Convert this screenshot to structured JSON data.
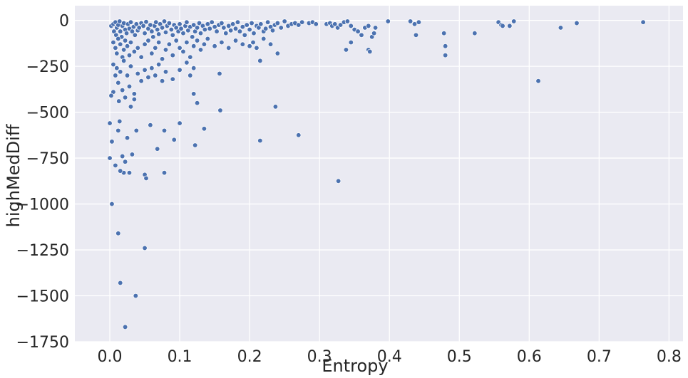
{
  "chart_data": {
    "type": "scatter",
    "title": "",
    "xlabel": "Entropy",
    "ylabel": "highMedDiff",
    "xlim": [
      -0.05,
      0.82
    ],
    "ylim": [
      -1750,
      80
    ],
    "x_ticks": [
      0.0,
      0.1,
      0.2,
      0.3,
      0.4,
      0.5,
      0.6,
      0.7,
      0.8
    ],
    "x_tick_labels": [
      "0.0",
      "0.1",
      "0.2",
      "0.3",
      "0.4",
      "0.5",
      "0.6",
      "0.7",
      "0.8"
    ],
    "y_ticks": [
      0,
      -250,
      -500,
      -750,
      -1000,
      -1250,
      -1500,
      -1750
    ],
    "y_tick_labels": [
      "0",
      "−250",
      "−500",
      "−750",
      "−1000",
      "−1250",
      "−1500",
      "−1750"
    ],
    "grid": true,
    "style": {
      "background_color": "#eaeaf2",
      "grid_color": "#ffffff",
      "point_color": "#4c72b0"
    },
    "points": [
      [
        0.002,
        -30
      ],
      [
        0.005,
        -20
      ],
      [
        0.006,
        -60
      ],
      [
        0.008,
        -10
      ],
      [
        0.009,
        -80
      ],
      [
        0.01,
        -40
      ],
      [
        0.012,
        -25
      ],
      [
        0.014,
        -5
      ],
      [
        0.015,
        -60
      ],
      [
        0.017,
        -90
      ],
      [
        0.018,
        -30
      ],
      [
        0.02,
        -15
      ],
      [
        0.022,
        -50
      ],
      [
        0.024,
        -70
      ],
      [
        0.026,
        -20
      ],
      [
        0.028,
        -45
      ],
      [
        0.03,
        -10
      ],
      [
        0.032,
        -60
      ],
      [
        0.034,
        -35
      ],
      [
        0.036,
        -80
      ],
      [
        0.038,
        -20
      ],
      [
        0.04,
        -55
      ],
      [
        0.042,
        -40
      ],
      [
        0.045,
        -15
      ],
      [
        0.048,
        -30
      ],
      [
        0.05,
        -70
      ],
      [
        0.052,
        -8
      ],
      [
        0.055,
        -45
      ],
      [
        0.058,
        -25
      ],
      [
        0.06,
        -60
      ],
      [
        0.062,
        -90
      ],
      [
        0.064,
        -30
      ],
      [
        0.066,
        -10
      ],
      [
        0.068,
        -50
      ],
      [
        0.07,
        -75
      ],
      [
        0.072,
        -20
      ],
      [
        0.075,
        -40
      ],
      [
        0.078,
        -5
      ],
      [
        0.08,
        -65
      ],
      [
        0.082,
        -30
      ],
      [
        0.085,
        -15
      ],
      [
        0.088,
        -50
      ],
      [
        0.09,
        -80
      ],
      [
        0.092,
        -25
      ],
      [
        0.095,
        -40
      ],
      [
        0.098,
        -60
      ],
      [
        0.1,
        -20
      ],
      [
        0.102,
        -45
      ],
      [
        0.105,
        -70
      ],
      [
        0.108,
        -30
      ],
      [
        0.11,
        -10
      ],
      [
        0.112,
        -55
      ],
      [
        0.115,
        -35
      ],
      [
        0.118,
        -90
      ],
      [
        0.12,
        -25
      ],
      [
        0.122,
        -60
      ],
      [
        0.125,
        -40
      ],
      [
        0.128,
        -15
      ],
      [
        0.13,
        -70
      ],
      [
        0.133,
        -30
      ],
      [
        0.136,
        -50
      ],
      [
        0.14,
        -20
      ],
      [
        0.143,
        -45
      ],
      [
        0.146,
        -10
      ],
      [
        0.15,
        -35
      ],
      [
        0.153,
        -60
      ],
      [
        0.156,
        -25
      ],
      [
        0.16,
        -15
      ],
      [
        0.163,
        -40
      ],
      [
        0.166,
        -70
      ],
      [
        0.17,
        -30
      ],
      [
        0.173,
        -55
      ],
      [
        0.176,
        -20
      ],
      [
        0.18,
        -45
      ],
      [
        0.183,
        -10
      ],
      [
        0.186,
        -60
      ],
      [
        0.19,
        -35
      ],
      [
        0.193,
        -80
      ],
      [
        0.196,
        -25
      ],
      [
        0.2,
        -50
      ],
      [
        0.203,
        -15
      ],
      [
        0.206,
        -70
      ],
      [
        0.21,
        -30
      ],
      [
        0.213,
        -40
      ],
      [
        0.216,
        -20
      ],
      [
        0.22,
        -60
      ],
      [
        0.223,
        -45
      ],
      [
        0.226,
        -10
      ],
      [
        0.23,
        -35
      ],
      [
        0.233,
        -55
      ],
      [
        0.236,
        -25
      ],
      [
        0.24,
        -15
      ],
      [
        0.245,
        -40
      ],
      [
        0.25,
        -5
      ],
      [
        0.255,
        -30
      ],
      [
        0.26,
        -20
      ],
      [
        0.265,
        -15
      ],
      [
        0.27,
        -25
      ],
      [
        0.275,
        -10
      ],
      [
        0.285,
        -15
      ],
      [
        0.29,
        -10
      ],
      [
        0.295,
        -20
      ],
      [
        0.005,
        -120
      ],
      [
        0.008,
        -150
      ],
      [
        0.01,
        -180
      ],
      [
        0.012,
        -100
      ],
      [
        0.015,
        -130
      ],
      [
        0.018,
        -200
      ],
      [
        0.02,
        -160
      ],
      [
        0.022,
        -110
      ],
      [
        0.025,
        -140
      ],
      [
        0.028,
        -190
      ],
      [
        0.03,
        -120
      ],
      [
        0.035,
        -170
      ],
      [
        0.04,
        -150
      ],
      [
        0.045,
        -200
      ],
      [
        0.05,
        -130
      ],
      [
        0.055,
        -110
      ],
      [
        0.06,
        -180
      ],
      [
        0.065,
        -150
      ],
      [
        0.07,
        -120
      ],
      [
        0.075,
        -210
      ],
      [
        0.08,
        -160
      ],
      [
        0.085,
        -130
      ],
      [
        0.09,
        -190
      ],
      [
        0.095,
        -110
      ],
      [
        0.1,
        -150
      ],
      [
        0.105,
        -170
      ],
      [
        0.11,
        -120
      ],
      [
        0.115,
        -200
      ],
      [
        0.12,
        -140
      ],
      [
        0.125,
        -110
      ],
      [
        0.13,
        -160
      ],
      [
        0.135,
        -130
      ],
      [
        0.14,
        -100
      ],
      [
        0.15,
        -140
      ],
      [
        0.16,
        -120
      ],
      [
        0.17,
        -150
      ],
      [
        0.18,
        -110
      ],
      [
        0.19,
        -130
      ],
      [
        0.2,
        -140
      ],
      [
        0.205,
        -120
      ],
      [
        0.21,
        -150
      ],
      [
        0.22,
        -100
      ],
      [
        0.23,
        -130
      ],
      [
        0.24,
        -180
      ],
      [
        0.215,
        -220
      ],
      [
        0.005,
        -240
      ],
      [
        0.008,
        -300
      ],
      [
        0.01,
        -260
      ],
      [
        0.012,
        -340
      ],
      [
        0.015,
        -280
      ],
      [
        0.018,
        -380
      ],
      [
        0.02,
        -220
      ],
      [
        0.022,
        -420
      ],
      [
        0.025,
        -300
      ],
      [
        0.028,
        -360
      ],
      [
        0.03,
        -250
      ],
      [
        0.035,
        -400
      ],
      [
        0.04,
        -290
      ],
      [
        0.045,
        -330
      ],
      [
        0.05,
        -270
      ],
      [
        0.055,
        -310
      ],
      [
        0.06,
        -260
      ],
      [
        0.065,
        -300
      ],
      [
        0.07,
        -240
      ],
      [
        0.075,
        -330
      ],
      [
        0.08,
        -280
      ],
      [
        0.09,
        -320
      ],
      [
        0.1,
        -270
      ],
      [
        0.11,
        -230
      ],
      [
        0.115,
        -300
      ],
      [
        0.12,
        -260
      ],
      [
        0.12,
        -400
      ],
      [
        0.125,
        -450
      ],
      [
        0.013,
        -440
      ],
      [
        0.005,
        -390
      ],
      [
        0.002,
        -410
      ],
      [
        0.03,
        -470
      ],
      [
        0.035,
        -430
      ],
      [
        0.157,
        -290
      ],
      [
        0.158,
        -490
      ],
      [
        0.237,
        -470
      ],
      [
        0.0,
        -560
      ],
      [
        0.0,
        -750
      ],
      [
        0.003,
        -660
      ],
      [
        0.008,
        -790
      ],
      [
        0.012,
        -600
      ],
      [
        0.014,
        -550
      ],
      [
        0.018,
        -740
      ],
      [
        0.02,
        -830
      ],
      [
        0.022,
        -770
      ],
      [
        0.025,
        -640
      ],
      [
        0.028,
        -830
      ],
      [
        0.032,
        -730
      ],
      [
        0.038,
        -600
      ],
      [
        0.05,
        -840
      ],
      [
        0.052,
        -860
      ],
      [
        0.058,
        -570
      ],
      [
        0.068,
        -700
      ],
      [
        0.078,
        -830
      ],
      [
        0.078,
        -600
      ],
      [
        0.092,
        -650
      ],
      [
        0.1,
        -560
      ],
      [
        0.122,
        -680
      ],
      [
        0.135,
        -590
      ],
      [
        0.215,
        -655
      ],
      [
        0.27,
        -625
      ],
      [
        0.015,
        -820
      ],
      [
        0.003,
        -1000
      ],
      [
        0.012,
        -1160
      ],
      [
        0.05,
        -1240
      ],
      [
        0.015,
        -1430
      ],
      [
        0.037,
        -1500
      ],
      [
        0.022,
        -1670
      ],
      [
        0.327,
        -875
      ],
      [
        0.31,
        -20
      ],
      [
        0.315,
        -15
      ],
      [
        0.318,
        -30
      ],
      [
        0.322,
        -20
      ],
      [
        0.326,
        -40
      ],
      [
        0.33,
        -25
      ],
      [
        0.335,
        -10
      ],
      [
        0.34,
        -5
      ],
      [
        0.345,
        -30
      ],
      [
        0.35,
        -50
      ],
      [
        0.338,
        -160
      ],
      [
        0.345,
        -120
      ],
      [
        0.355,
        -60
      ],
      [
        0.36,
        -80
      ],
      [
        0.365,
        -40
      ],
      [
        0.37,
        -160
      ],
      [
        0.372,
        -170
      ],
      [
        0.375,
        -90
      ],
      [
        0.378,
        -70
      ],
      [
        0.38,
        -40
      ],
      [
        0.37,
        -30
      ],
      [
        0.398,
        -5
      ],
      [
        0.43,
        -5
      ],
      [
        0.436,
        -20
      ],
      [
        0.438,
        -80
      ],
      [
        0.442,
        -10
      ],
      [
        0.478,
        -70
      ],
      [
        0.48,
        -140
      ],
      [
        0.48,
        -190
      ],
      [
        0.522,
        -70
      ],
      [
        0.556,
        -10
      ],
      [
        0.56,
        -25
      ],
      [
        0.562,
        -30
      ],
      [
        0.572,
        -30
      ],
      [
        0.578,
        -5
      ],
      [
        0.613,
        -330
      ],
      [
        0.645,
        -40
      ],
      [
        0.668,
        -15
      ],
      [
        0.763,
        -10
      ]
    ]
  }
}
